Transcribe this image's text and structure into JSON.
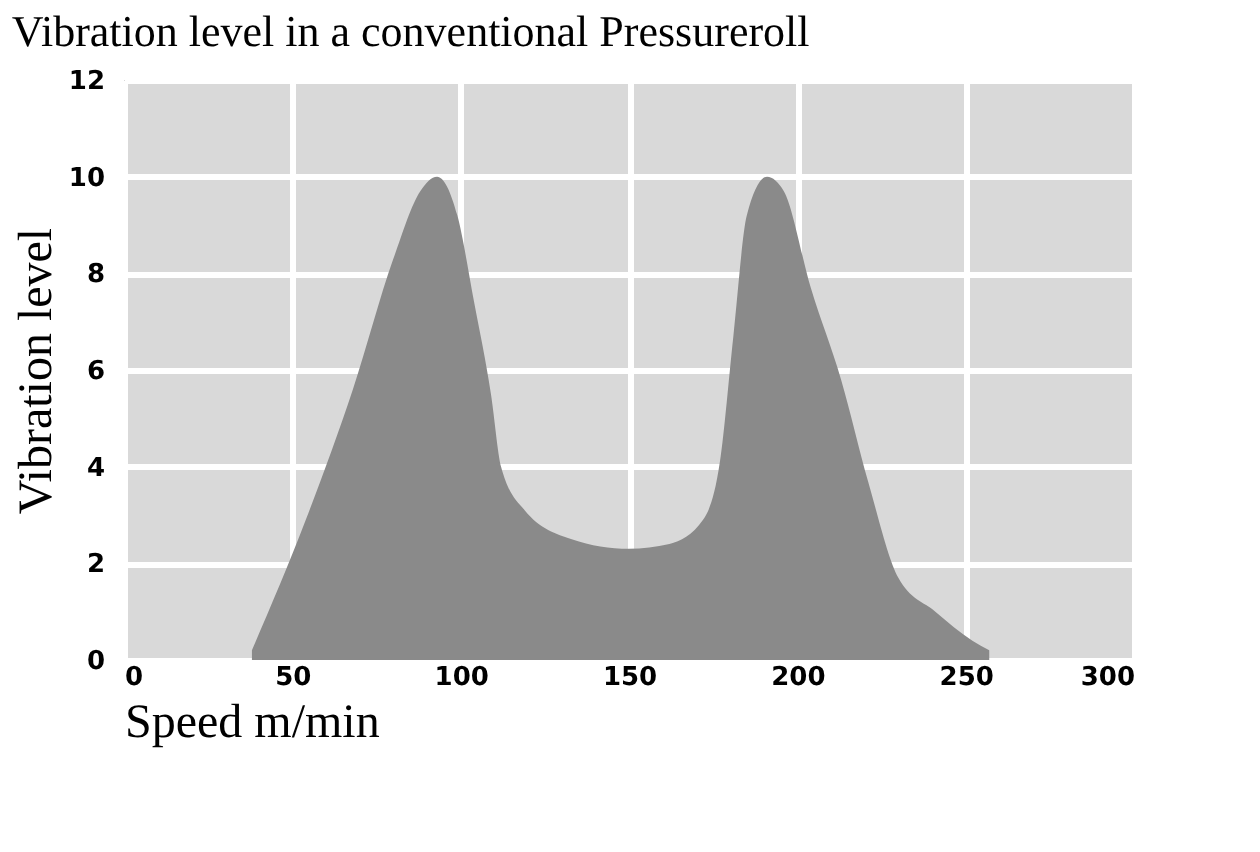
{
  "chart_data": {
    "type": "area",
    "title": "Vibration level in a conventional Pressureroll",
    "xlabel": "Speed m/min",
    "ylabel": "Vibration level",
    "x": [
      38,
      54,
      68,
      80,
      88,
      93,
      99,
      104,
      109,
      112,
      119,
      133,
      150,
      162,
      172,
      177,
      181,
      185,
      191,
      196,
      204,
      213,
      221,
      230,
      241,
      252,
      257
    ],
    "series": [
      {
        "color": "#8a8a8a",
        "values": [
          0.2,
          2.9,
          5.6,
          8.3,
          9.7,
          10.0,
          9.2,
          7.4,
          5.5,
          4.0,
          3.1,
          2.5,
          2.3,
          2.4,
          2.9,
          4.1,
          6.7,
          9.2,
          10.0,
          9.7,
          7.7,
          5.8,
          3.7,
          1.7,
          1.0,
          0.4,
          0.2
        ]
      }
    ],
    "xlim": [
      0,
      300
    ],
    "xticks": [
      0,
      50,
      100,
      150,
      200,
      250,
      300
    ],
    "ylim": [
      0,
      12
    ],
    "yticks": [
      0,
      2,
      4,
      6,
      8,
      10,
      12
    ],
    "grid": true
  }
}
